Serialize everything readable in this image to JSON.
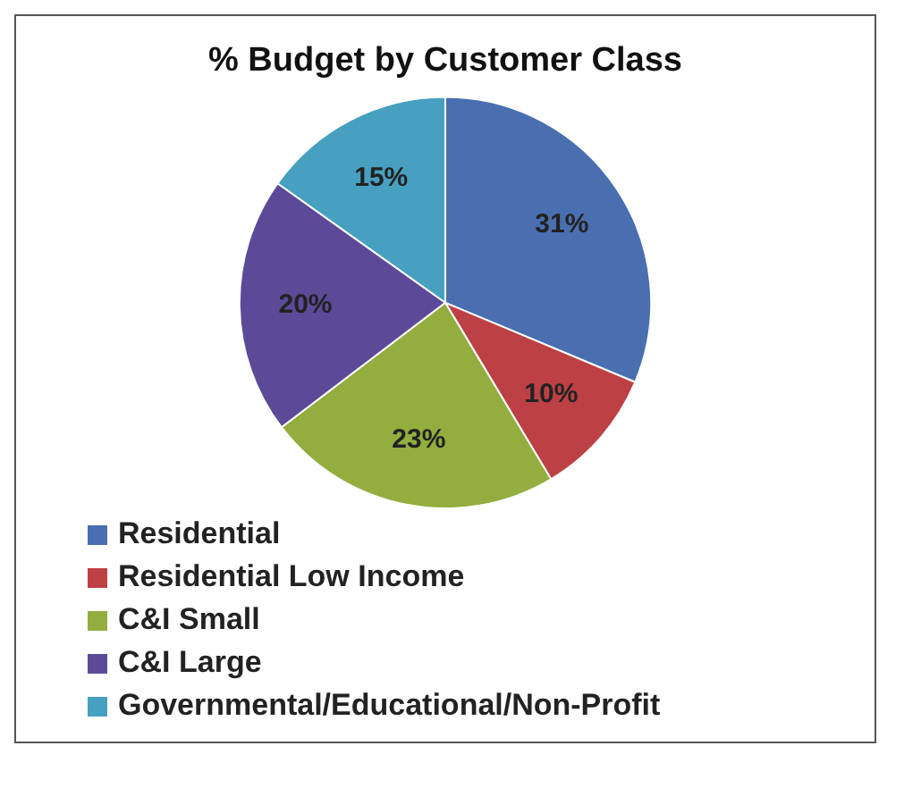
{
  "chart_data": {
    "type": "pie",
    "title": "% Budget by Customer Class",
    "categories": [
      "Residential",
      "Residential Low Income",
      "C&I Small",
      "C&I Large",
      "Governmental/Educational/Non-Profit"
    ],
    "values": [
      31,
      10,
      23,
      20,
      15
    ],
    "colors": [
      "#4a6fb0",
      "#bd4044",
      "#93ad3e",
      "#5c4a99",
      "#47a0bf"
    ],
    "value_labels": [
      "31%",
      "10%",
      "23%",
      "20%",
      "15%"
    ],
    "legend": "bottom"
  }
}
